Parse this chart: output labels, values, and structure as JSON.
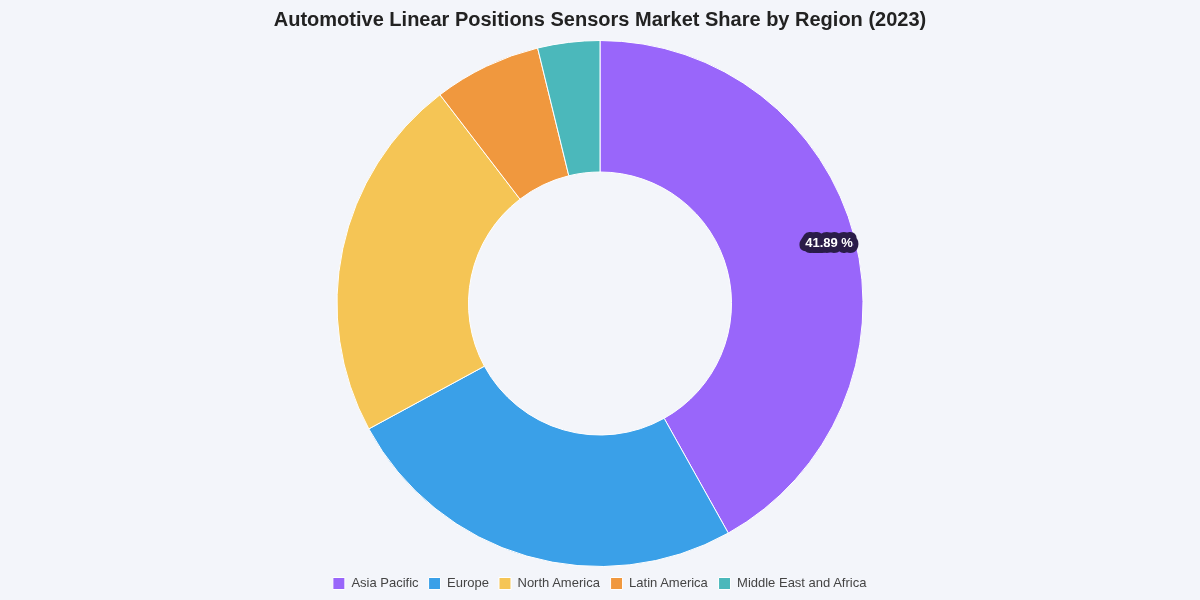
{
  "chart_data": {
    "type": "donut",
    "title": "Automotive Linear Positions Sensors Market Share by Region (2023)",
    "categories": [
      "Asia Pacific",
      "Europe",
      "North America",
      "Latin America",
      "Middle East and Africa"
    ],
    "values": [
      41.89,
      25.2,
      22.5,
      6.6,
      3.81
    ],
    "colors": [
      "#9966fa",
      "#3aa0e8",
      "#f5c555",
      "#f0983e",
      "#4bb8bb"
    ],
    "value_labels": [
      "41.89 %",
      null,
      null,
      null,
      null
    ],
    "legend": "bottom"
  }
}
